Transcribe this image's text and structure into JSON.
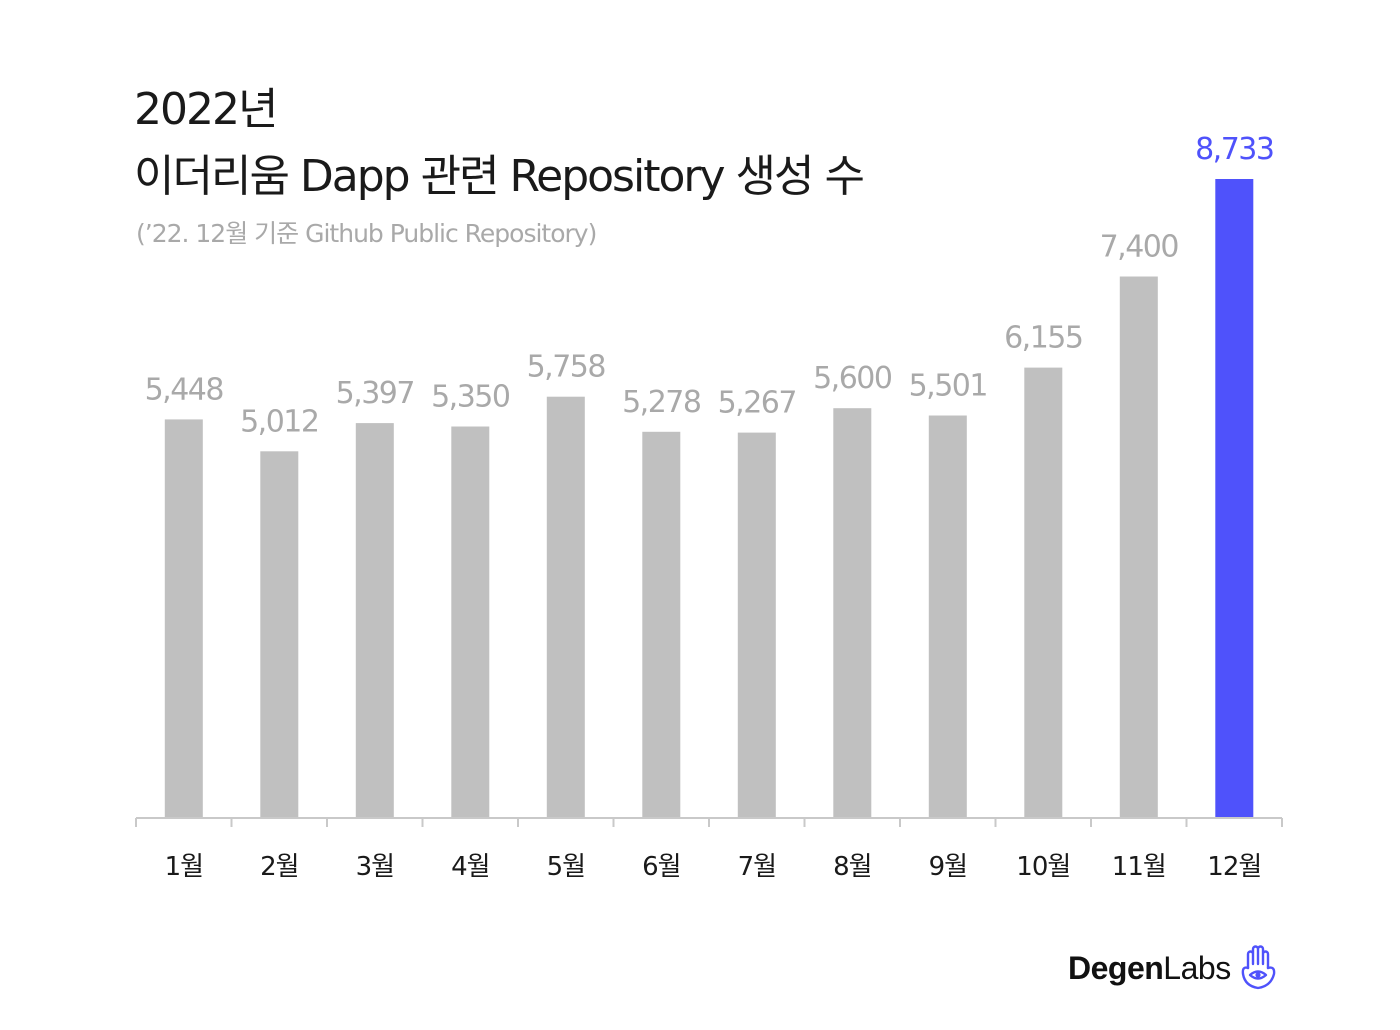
{
  "title": {
    "line1": "2022년",
    "line2": "이더리움 Dapp 관련 Repository 생성 수"
  },
  "subtitle": "(’22. 12월 기준 Github Public Repository)",
  "brand": {
    "bold": "Degen",
    "light": "Labs",
    "icon": "hamsa-hand-eye-icon"
  },
  "colors": {
    "bar": "#c0c0c0",
    "highlight": "#4f52fb",
    "label": "#a9a9a9",
    "axis": "#c9c9c9",
    "tick_text": "#1a1a1a"
  },
  "chart_data": {
    "type": "bar",
    "categories": [
      "1월",
      "2월",
      "3월",
      "4월",
      "5월",
      "6월",
      "7월",
      "8월",
      "9월",
      "10월",
      "11월",
      "12월"
    ],
    "values": [
      5448,
      5012,
      5397,
      5350,
      5758,
      5278,
      5267,
      5600,
      5501,
      6155,
      7400,
      8733
    ],
    "value_labels": [
      "5,448",
      "5,012",
      "5,397",
      "5,350",
      "5,758",
      "5,278",
      "5,267",
      "5,600",
      "5,501",
      "6,155",
      "7,400",
      "8,733"
    ],
    "highlight_index": 11,
    "ylim": [
      0,
      8733
    ],
    "grid": false,
    "legend": "none"
  }
}
